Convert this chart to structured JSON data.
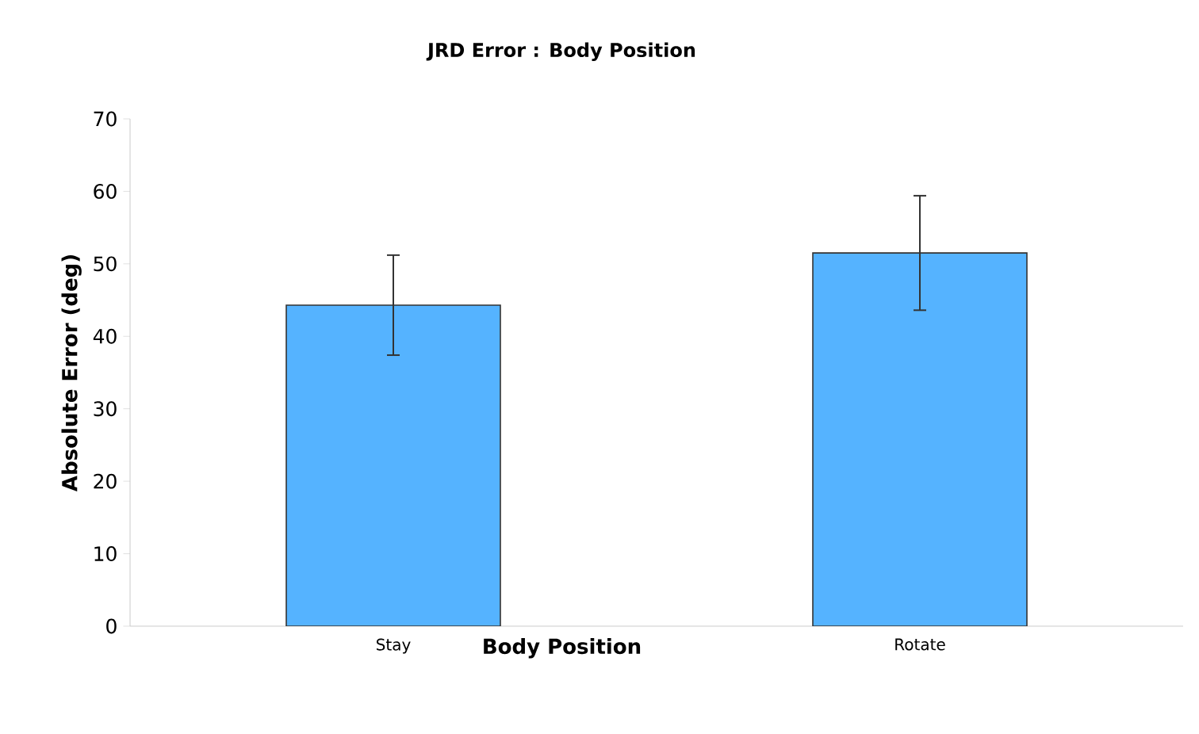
{
  "chart_data": {
    "type": "bar",
    "title": "JRD Error : Body Position",
    "xlabel": "Body Position",
    "ylabel": "Absolute Error (deg)",
    "categories": [
      "Stay",
      "Rotate"
    ],
    "values": [
      44.3,
      51.5
    ],
    "errors": [
      6.9,
      7.9
    ],
    "color": "#55b3ff",
    "ylim": [
      0,
      70
    ],
    "yticks": [
      0,
      10,
      20,
      30,
      40,
      50,
      60,
      70
    ],
    "grid": false
  }
}
